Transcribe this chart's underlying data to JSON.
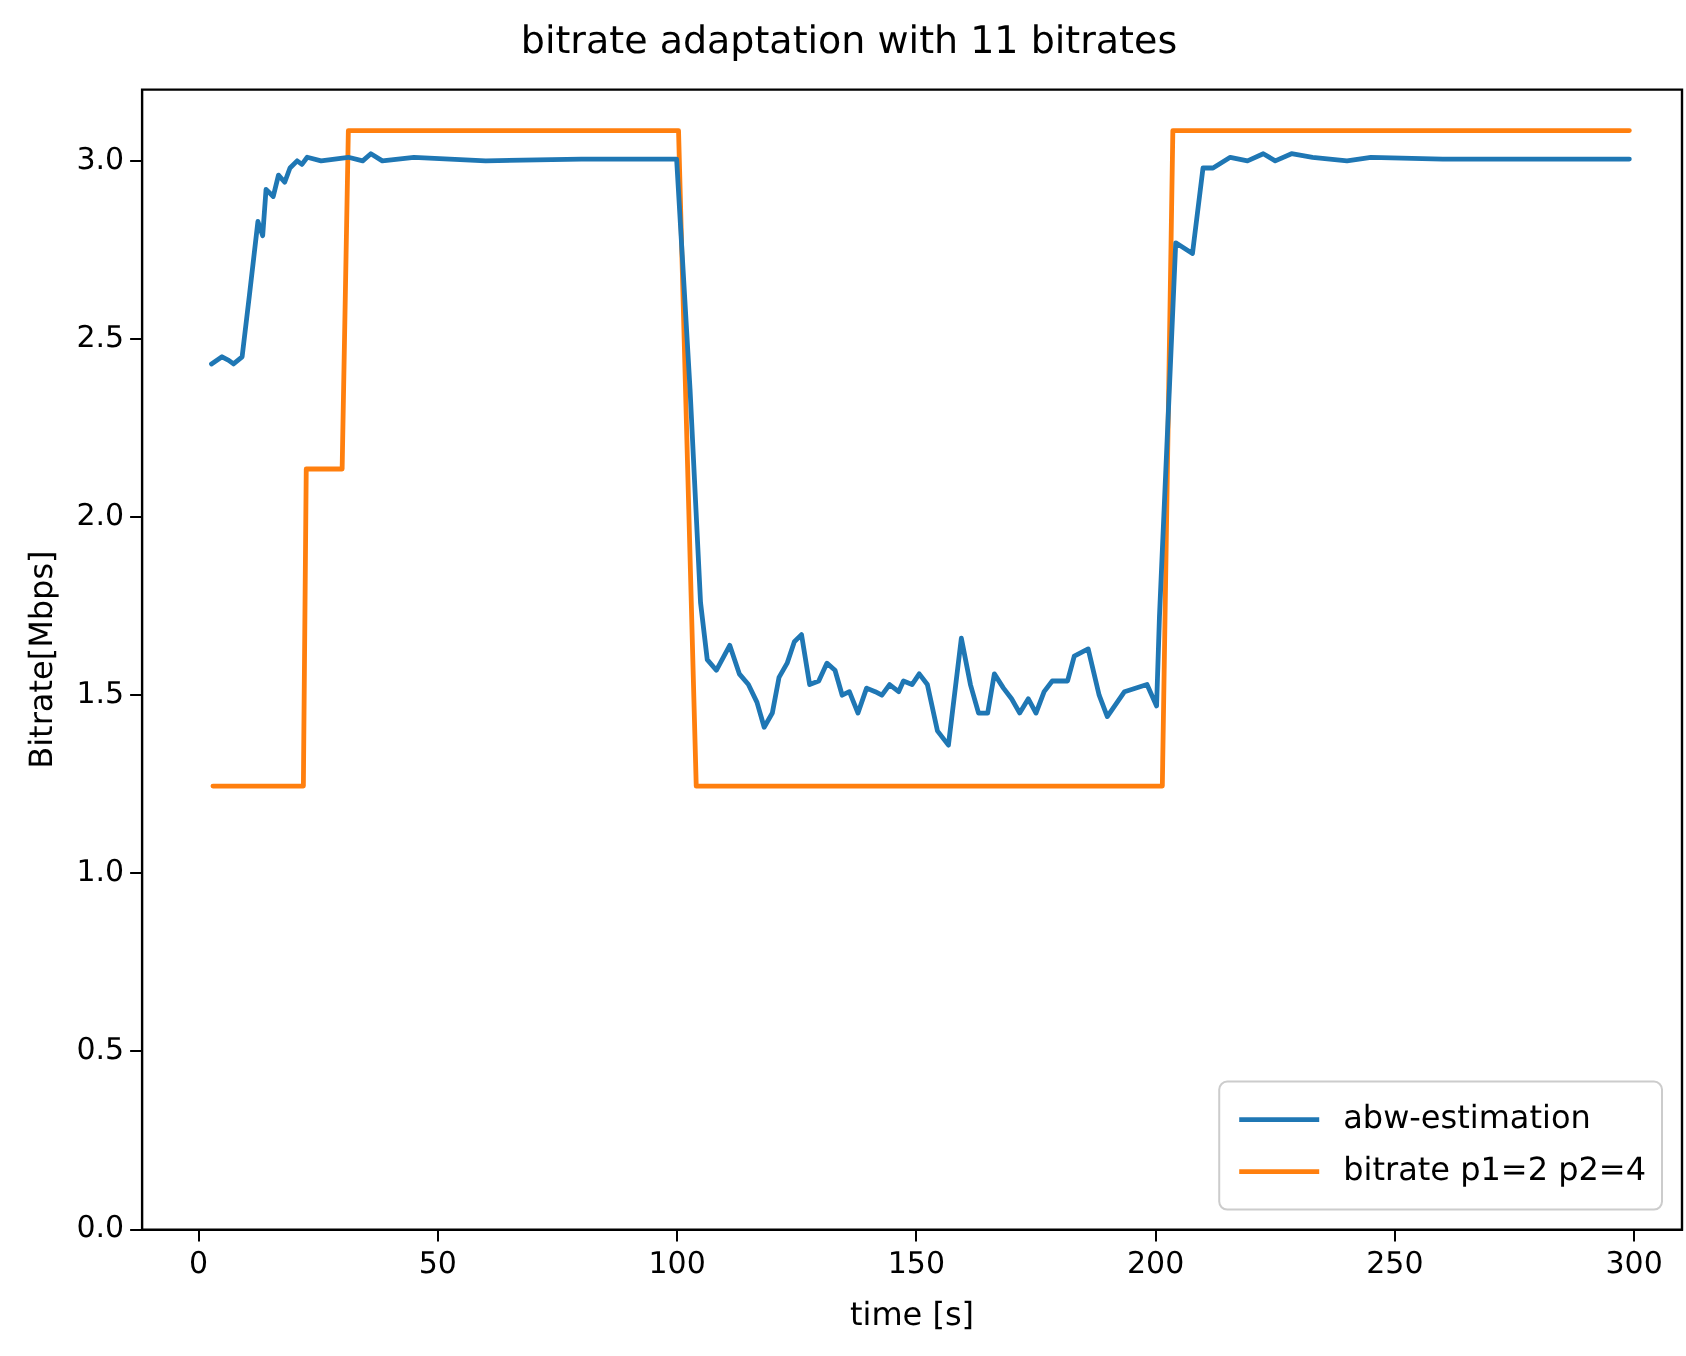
{
  "chart_data": {
    "type": "line",
    "title": "bitrate adaptation with 11 bitrates",
    "xlabel": "time [s]",
    "ylabel": "Bitrate[Mbps]",
    "xlim": [
      -11.8,
      310
    ],
    "ylim": [
      0,
      3.2
    ],
    "xticks": [
      0,
      50,
      100,
      150,
      200,
      250,
      300
    ],
    "yticks": [
      {
        "value": 0,
        "label": "0.0"
      },
      {
        "value": 0.5,
        "label": "0.5"
      },
      {
        "value": 1,
        "label": "1.0"
      },
      {
        "value": 1.5,
        "label": "1.5"
      },
      {
        "value": 2,
        "label": "2.0"
      },
      {
        "value": 2.5,
        "label": "2.5"
      },
      {
        "value": 3,
        "label": "3.0"
      }
    ],
    "grid": false,
    "legend": "bottom right",
    "marker": "none",
    "line_style": "solid",
    "series": [
      {
        "name": "abw-estimation",
        "color": "#1f77b4",
        "x": [
          2.7,
          4.9,
          6.3,
          7.3,
          9.1,
          10.6,
          12.4,
          13.4,
          14.1,
          15.6,
          16.7,
          18.0,
          19.1,
          20.6,
          21.6,
          22.7,
          25.6,
          31.3,
          34.3,
          36.0,
          38.4,
          45,
          60,
          80,
          99.9,
          102.7,
          104.9,
          106.3,
          108.2,
          111.0,
          113.0,
          114.9,
          116.7,
          118.2,
          119.9,
          121.3,
          123.0,
          124.5,
          126.0,
          127.7,
          129.6,
          131.3,
          133.0,
          134.5,
          136.0,
          137.8,
          139.6,
          141.4,
          142.8,
          144.4,
          146.3,
          147.3,
          149.1,
          150.6,
          152.3,
          154.4,
          156.7,
          159.4,
          161.3,
          163.0,
          164.9,
          166.3,
          168.2,
          169.9,
          171.6,
          173.4,
          175.0,
          176.7,
          178.4,
          181.6,
          183.0,
          185.9,
          188.2,
          189.9,
          193.5,
          198.2,
          200.2,
          200.8,
          204.2,
          207.7,
          209.9,
          212.0,
          215.6,
          219.2,
          222.5,
          225.0,
          228.4,
          232.8,
          240,
          245,
          260,
          280,
          299
        ],
        "values": [
          2.43,
          2.45,
          2.44,
          2.43,
          2.45,
          2.62,
          2.83,
          2.79,
          2.92,
          2.9,
          2.96,
          2.94,
          2.98,
          3.0,
          2.99,
          3.01,
          3.0,
          3.01,
          3.0,
          3.02,
          3.0,
          3.01,
          3.0,
          3.005,
          3.005,
          2.36,
          1.76,
          1.6,
          1.57,
          1.64,
          1.56,
          1.53,
          1.48,
          1.41,
          1.45,
          1.55,
          1.59,
          1.65,
          1.67,
          1.53,
          1.54,
          1.59,
          1.57,
          1.5,
          1.51,
          1.45,
          1.52,
          1.51,
          1.5,
          1.53,
          1.51,
          1.54,
          1.53,
          1.56,
          1.53,
          1.4,
          1.36,
          1.66,
          1.53,
          1.45,
          1.45,
          1.56,
          1.52,
          1.49,
          1.45,
          1.49,
          1.45,
          1.51,
          1.54,
          1.54,
          1.61,
          1.63,
          1.5,
          1.44,
          1.51,
          1.53,
          1.47,
          1.72,
          2.77,
          2.74,
          2.98,
          2.98,
          3.01,
          3.0,
          3.02,
          3.0,
          3.02,
          3.01,
          3.0,
          3.01,
          3.005,
          3.005,
          3.005
        ]
      },
      {
        "name": "bitrate p1=2 p2=4",
        "color": "#ff7f0e",
        "x": [
          3,
          21.9,
          22.5,
          30,
          31.3,
          100.3,
          104,
          201.4,
          203.6,
          299
        ],
        "values": [
          1.245,
          1.245,
          2.135,
          2.135,
          3.085,
          3.085,
          1.245,
          1.245,
          3.085,
          3.085
        ]
      }
    ]
  }
}
